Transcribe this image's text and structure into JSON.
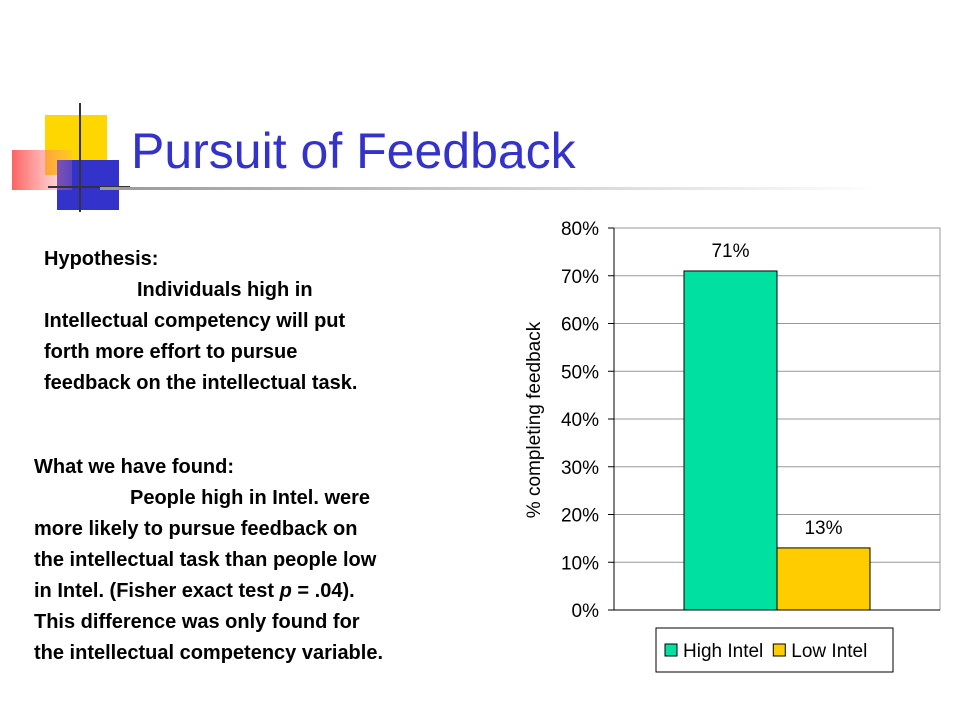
{
  "title": "Pursuit of Feedback",
  "hypothesis": {
    "heading": "Hypothesis:",
    "lines": [
      "Individuals high in",
      "Intellectual competency will put",
      "forth more effort to pursue",
      "feedback on the intellectual task."
    ]
  },
  "findings": {
    "heading": "What we have found:",
    "lines": [
      [
        "People high in Intel. were"
      ],
      [
        "more likely to pursue feedback on"
      ],
      [
        "the intellectual task than people low"
      ],
      [
        "in Intel. (Fisher exact test ",
        "p",
        " = .04)."
      ],
      [
        "This difference was only found for"
      ],
      [
        "the intellectual competency variable."
      ]
    ]
  },
  "chart_data": {
    "type": "bar",
    "ylabel": "% completing feedback",
    "categories": [
      null
    ],
    "series": [
      {
        "name": "High Intel",
        "color": "#00e0a0",
        "values": [
          71
        ],
        "value_labels": [
          "71%"
        ]
      },
      {
        "name": "Low Intel",
        "color": "#ffcc00",
        "values": [
          13
        ],
        "value_labels": [
          "13%"
        ]
      }
    ],
    "ylim": [
      0,
      80
    ],
    "yticks": [
      {
        "value": 0,
        "label": "0%"
      },
      {
        "value": 10,
        "label": "10%"
      },
      {
        "value": 20,
        "label": "20%"
      },
      {
        "value": 30,
        "label": "30%"
      },
      {
        "value": 40,
        "label": "40%"
      },
      {
        "value": 50,
        "label": "50%"
      },
      {
        "value": 60,
        "label": "60%"
      },
      {
        "value": 70,
        "label": "70%"
      },
      {
        "value": 80,
        "label": "80%"
      }
    ],
    "grid": true,
    "legend": "bottom"
  }
}
